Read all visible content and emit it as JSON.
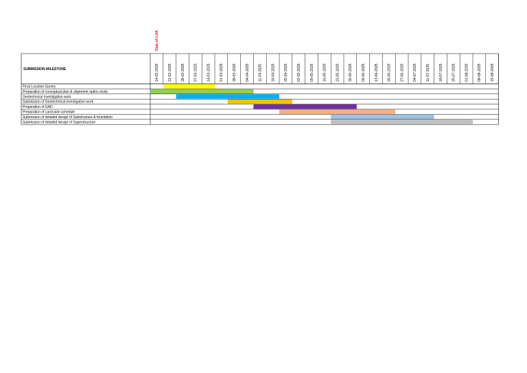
{
  "chart_data": {
    "type": "gantt",
    "header_label": "SUBMISSION MILESTONE",
    "annotation": {
      "label": "Date of LOA",
      "date": "14-02-2025",
      "color": "#ff0000"
    },
    "dates": [
      "14-02-2025",
      "21-02-2025",
      "28-02-2025",
      "07-03-2025",
      "14-03-2025",
      "21-03-2025",
      "28-03-2025",
      "04-04-2025",
      "11-04-2025",
      "18-04-2025",
      "25-04-2025",
      "02-05-2025",
      "09-05-2025",
      "16-05-2025",
      "23-05-2025",
      "30-05-2025",
      "06-06-2025",
      "13-06-2025",
      "20-06-2025",
      "27-06-2025",
      "04-07-2025",
      "11-07-2025",
      "18-07-2025",
      "25-07-2025",
      "01-08-2025",
      "08-08-2025",
      "15-08-2025"
    ],
    "tasks": [
      {
        "name": "Final Location Survey",
        "start": 1,
        "end": 5,
        "color": "#ffff00"
      },
      {
        "name": "Preparation of conceptual plan & alignment option study",
        "start": 0,
        "end": 8,
        "color": "#92d050"
      },
      {
        "name": "Geotechnical Investigation work",
        "start": 2,
        "end": 10,
        "color": "#00b0f0"
      },
      {
        "name": "Submission of Geotechnical investigation work",
        "start": 6,
        "end": 11,
        "color": "#ffc000"
      },
      {
        "name": "Preparation of GAD",
        "start": 8,
        "end": 16,
        "color": "#7030a0"
      },
      {
        "name": "Preparation of Land plan schedule",
        "start": 10,
        "end": 19,
        "color": "#f4b183"
      },
      {
        "name": "Submission of detailed design of Substructure & foundation",
        "start": 14,
        "end": 22,
        "color": "#9dc3e6"
      },
      {
        "name": "Submission of detailed design of Superstructure",
        "start": 14,
        "end": 25,
        "color": "#bfbfbf"
      }
    ]
  }
}
